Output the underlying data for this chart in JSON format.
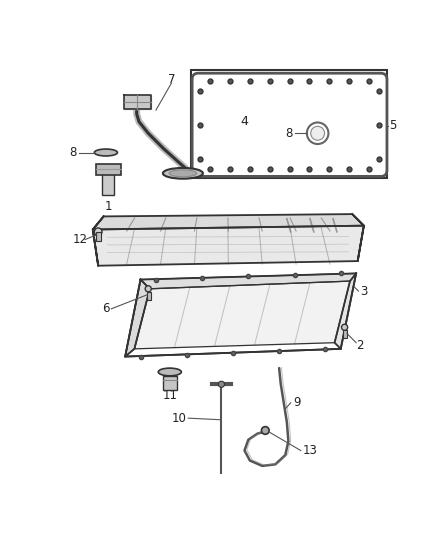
{
  "bg_color": "#ffffff",
  "line_color": "#666666",
  "dark_line": "#333333",
  "fig_width": 4.38,
  "fig_height": 5.33,
  "dpi": 100
}
